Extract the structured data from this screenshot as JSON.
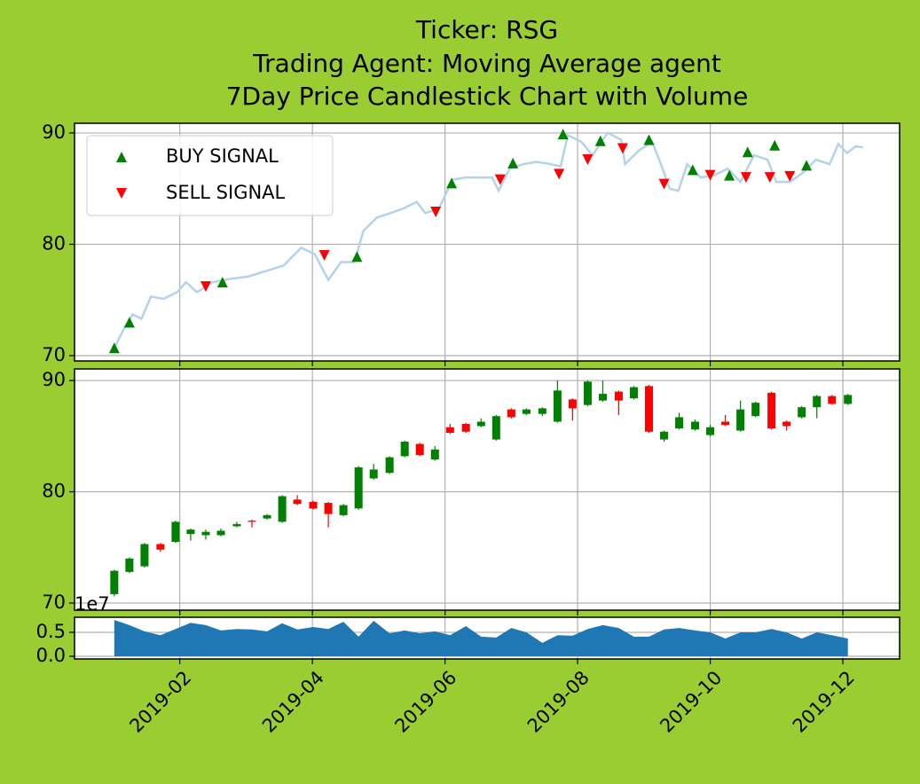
{
  "chart_data": [
    {
      "type": "line",
      "title": [
        "Ticker: RSG",
        "Trading Agent: Moving Average agent",
        "7Day Price Candlestick Chart with Volume"
      ],
      "ylim": [
        69.52,
        90.87
      ],
      "yticks": [
        70,
        80,
        90
      ],
      "grid": true,
      "legend": "upper left",
      "series": [
        {
          "color": "#b4d3ea",
          "marker": "none",
          "x": [
            2019.001,
            2019.013,
            2019.024,
            2019.035,
            2019.047,
            2019.063,
            2019.08,
            2019.091,
            2019.105,
            2019.125,
            2019.147,
            2019.169,
            2019.192,
            2019.214,
            2019.236,
            2019.253,
            2019.27,
            2019.286,
            2019.303,
            2019.314,
            2019.331,
            2019.348,
            2019.364,
            2019.381,
            2019.392,
            2019.409,
            2019.426,
            2019.443,
            2019.459,
            2019.476,
            2019.484,
            2019.498,
            2019.515,
            2019.532,
            2019.549,
            2019.562,
            2019.571,
            2019.588,
            2019.602,
            2019.621,
            2019.638,
            2019.643,
            2019.66,
            2019.677,
            2019.688,
            2019.699,
            2019.71,
            2019.721,
            2019.738,
            2019.755,
            2019.772,
            2019.788,
            2019.805,
            2019.822,
            2019.833,
            2019.85,
            2019.866,
            2019.883,
            2019.9,
            2019.911,
            2019.922,
            2019.933,
            2019.942
          ],
          "values": [
            70.7,
            72.4,
            73.7,
            73.3,
            75.3,
            75.1,
            75.7,
            76.6,
            75.7,
            76.6,
            76.9,
            77.1,
            77.6,
            78.1,
            79.7,
            79.1,
            76.8,
            78.4,
            78.4,
            81.2,
            82.4,
            82.8,
            83.2,
            83.8,
            82.8,
            83.2,
            85.8,
            86.0,
            86.0,
            86.0,
            84.8,
            86.8,
            87.2,
            87.4,
            87.2,
            87.0,
            89.8,
            89.2,
            88.0,
            90.0,
            89.4,
            87.2,
            88.4,
            89.2,
            87.2,
            85.0,
            84.8,
            87.2,
            86.0,
            86.2,
            86.8,
            85.6,
            88.0,
            87.6,
            85.6,
            85.6,
            86.4,
            87.6,
            87.2,
            89.0,
            88.2,
            88.8,
            88.7
          ]
        },
        {
          "name": "BUY SIGNAL",
          "color": "green",
          "marker": "^",
          "x": [
            2019.001,
            2019.02,
            2019.137,
            2019.306,
            2019.425,
            2019.502,
            2019.565,
            2019.612,
            2019.673,
            2019.728,
            2019.774,
            2019.797,
            2019.831,
            2019.871
          ],
          "values": [
            70.7,
            73.0,
            76.6,
            78.9,
            85.5,
            87.3,
            89.9,
            89.3,
            89.4,
            86.7,
            86.2,
            88.3,
            88.9,
            87.1
          ]
        },
        {
          "name": "SELL SIGNAL",
          "color": "red",
          "marker": "v",
          "x": [
            2019.116,
            2019.265,
            2019.405,
            2019.486,
            2019.56,
            2019.596,
            2019.64,
            2019.692,
            2019.75,
            2019.795,
            2019.825,
            2019.85
          ],
          "values": [
            76.2,
            79.0,
            82.9,
            85.8,
            86.3,
            87.6,
            88.6,
            85.4,
            86.2,
            86.0,
            86.0,
            86.1
          ]
        }
      ]
    },
    {
      "type": "candlestick",
      "ylim": [
        69.36,
        91.04
      ],
      "yticks": [
        70,
        80,
        90
      ],
      "grid": true,
      "colorup": "green",
      "colordown": "red",
      "x": [
        2019.001,
        2019.02,
        2019.039,
        2019.059,
        2019.078,
        2019.097,
        2019.116,
        2019.135,
        2019.155,
        2019.174,
        2019.193,
        2019.212,
        2019.231,
        2019.251,
        2019.27,
        2019.289,
        2019.308,
        2019.327,
        2019.347,
        2019.366,
        2019.385,
        2019.404,
        2019.423,
        2019.443,
        2019.462,
        2019.481,
        2019.5,
        2019.519,
        2019.539,
        2019.558,
        2019.577,
        2019.596,
        2019.615,
        2019.635,
        2019.654,
        2019.673,
        2019.692,
        2019.711,
        2019.731,
        2019.75,
        2019.769,
        2019.788,
        2019.807,
        2019.827,
        2019.846,
        2019.865,
        2019.884,
        2019.903,
        2019.923
      ],
      "open": [
        70.8,
        72.8,
        73.3,
        75.3,
        75.5,
        76.2,
        76.1,
        76.1,
        76.9,
        77.4,
        77.6,
        77.3,
        79.3,
        79.1,
        79.0,
        77.9,
        78.5,
        81.2,
        81.7,
        83.2,
        84.3,
        82.9,
        85.8,
        86.1,
        85.9,
        84.7,
        87.4,
        87.0,
        87.0,
        86.3,
        88.3,
        87.8,
        88.2,
        89.0,
        88.4,
        89.5,
        84.7,
        85.7,
        85.6,
        85.1,
        86.3,
        85.5,
        86.8,
        88.9,
        86.3,
        86.7,
        87.6,
        88.6,
        87.9
      ],
      "high": [
        73.0,
        74.1,
        75.4,
        75.4,
        77.4,
        76.7,
        76.6,
        76.7,
        77.3,
        77.5,
        78.0,
        79.7,
        79.7,
        79.2,
        79.1,
        78.9,
        82.3,
        82.5,
        83.2,
        84.6,
        84.4,
        84.1,
        86.1,
        86.2,
        86.6,
        86.9,
        87.5,
        87.5,
        87.6,
        90.0,
        88.4,
        90.0,
        90.0,
        89.1,
        89.5,
        89.6,
        85.5,
        87.1,
        86.5,
        86.0,
        86.9,
        88.2,
        88.1,
        89.0,
        86.4,
        87.7,
        88.7,
        88.7,
        88.8
      ],
      "low": [
        70.6,
        72.7,
        73.2,
        74.6,
        75.4,
        75.6,
        75.7,
        76.0,
        76.8,
        76.8,
        77.5,
        77.2,
        78.8,
        78.4,
        76.8,
        77.8,
        78.4,
        81.1,
        81.6,
        83.1,
        83.2,
        82.8,
        85.2,
        85.3,
        85.8,
        84.6,
        86.6,
        86.9,
        86.8,
        86.2,
        86.4,
        87.7,
        88.1,
        86.9,
        88.3,
        85.3,
        84.5,
        85.6,
        85.5,
        85.0,
        85.9,
        85.4,
        86.7,
        85.6,
        85.5,
        86.6,
        86.6,
        87.8,
        87.8
      ],
      "close": [
        72.9,
        74.0,
        75.3,
        74.8,
        77.3,
        76.6,
        76.4,
        76.5,
        77.1,
        77.3,
        77.9,
        79.6,
        78.9,
        78.5,
        78.0,
        78.8,
        82.2,
        82.0,
        83.1,
        84.5,
        83.3,
        83.8,
        85.3,
        85.4,
        86.3,
        86.8,
        86.7,
        87.4,
        87.5,
        89.1,
        87.5,
        89.9,
        88.8,
        88.2,
        89.4,
        85.4,
        85.4,
        86.7,
        86.3,
        85.8,
        86.0,
        87.4,
        88.0,
        85.7,
        85.9,
        87.6,
        88.6,
        87.9,
        88.7
      ]
    },
    {
      "type": "area",
      "color": "#1f77b4",
      "offset_label": "1e7",
      "ylim": [
        -0.056,
        0.815
      ],
      "yticks": [
        {
          "value": 0,
          "label": "0.0"
        },
        0.5
      ],
      "grid": true,
      "xlim": [
        2018.951,
        2019.988
      ],
      "xticks": [
        {
          "value": 2019.0833,
          "label": "2019-02"
        },
        {
          "value": 2019.25,
          "label": "2019-04"
        },
        {
          "value": 2019.4167,
          "label": "2019-06"
        },
        {
          "value": 2019.5833,
          "label": "2019-08"
        },
        {
          "value": 2019.75,
          "label": "2019-10"
        },
        {
          "value": 2019.9167,
          "label": "2019-12"
        }
      ],
      "x": [
        2019.001,
        2019.02,
        2019.039,
        2019.059,
        2019.078,
        2019.097,
        2019.116,
        2019.135,
        2019.155,
        2019.174,
        2019.193,
        2019.212,
        2019.231,
        2019.251,
        2019.27,
        2019.289,
        2019.308,
        2019.327,
        2019.347,
        2019.366,
        2019.385,
        2019.404,
        2019.423,
        2019.443,
        2019.462,
        2019.481,
        2019.5,
        2019.519,
        2019.539,
        2019.558,
        2019.577,
        2019.596,
        2019.615,
        2019.635,
        2019.654,
        2019.673,
        2019.692,
        2019.711,
        2019.731,
        2019.75,
        2019.769,
        2019.788,
        2019.807,
        2019.827,
        2019.846,
        2019.865,
        2019.884,
        2019.903,
        2019.923
      ],
      "values": [
        0.76,
        0.65,
        0.52,
        0.44,
        0.57,
        0.7,
        0.65,
        0.54,
        0.57,
        0.56,
        0.52,
        0.69,
        0.56,
        0.61,
        0.57,
        0.72,
        0.41,
        0.74,
        0.48,
        0.54,
        0.48,
        0.52,
        0.44,
        0.63,
        0.41,
        0.39,
        0.59,
        0.5,
        0.28,
        0.44,
        0.43,
        0.57,
        0.65,
        0.59,
        0.41,
        0.41,
        0.56,
        0.59,
        0.54,
        0.5,
        0.37,
        0.5,
        0.5,
        0.57,
        0.5,
        0.37,
        0.5,
        0.44,
        0.37
      ]
    }
  ]
}
